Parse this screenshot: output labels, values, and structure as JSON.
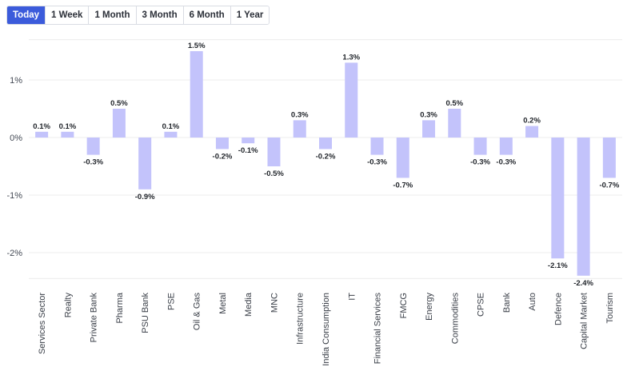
{
  "tabs": [
    {
      "label": "Today",
      "active": true
    },
    {
      "label": "1 Week",
      "active": false
    },
    {
      "label": "1 Month",
      "active": false
    },
    {
      "label": "3 Month",
      "active": false
    },
    {
      "label": "6 Month",
      "active": false
    },
    {
      "label": "1 Year",
      "active": false
    }
  ],
  "colors": {
    "bar": "#c3c3fb",
    "accent": "#3b5bdb",
    "grid": "#ececec"
  },
  "chart_data": {
    "type": "bar",
    "categories": [
      "Services Sector",
      "Realty",
      "Private Bank",
      "Pharma",
      "PSU Bank",
      "PSE",
      "Oil & Gas",
      "Metal",
      "Media",
      "MNC",
      "Infrastructure",
      "India Consumption",
      "IT",
      "Financial Services",
      "FMCG",
      "Energy",
      "Commodities",
      "CPSE",
      "Bank",
      "Auto",
      "Defence",
      "Capital Market",
      "Tourism"
    ],
    "values": [
      0.1,
      0.1,
      -0.3,
      0.5,
      -0.9,
      0.1,
      1.5,
      -0.2,
      -0.1,
      -0.5,
      0.3,
      -0.2,
      1.3,
      -0.3,
      -0.7,
      0.3,
      0.5,
      -0.3,
      -0.3,
      0.2,
      -2.1,
      -2.4,
      -0.7
    ],
    "data_labels": [
      "0.1%",
      "0.1%",
      "-0.3%",
      "0.5%",
      "-0.9%",
      "0.1%",
      "1.5%",
      "-0.2%",
      "-0.1%",
      "-0.5%",
      "0.3%",
      "-0.2%",
      "1.3%",
      "-0.3%",
      "-0.7%",
      "0.3%",
      "0.5%",
      "-0.3%",
      "-0.3%",
      "0.2%",
      "-2.1%",
      "-2.4%",
      "-0.7%"
    ],
    "yticks": [
      1,
      0,
      -1,
      -2
    ],
    "ytick_labels": [
      "1%",
      "0%",
      "-1%",
      "-2%"
    ],
    "ylim": [
      -2.6,
      1.7
    ],
    "grid": true,
    "legend": "none"
  }
}
